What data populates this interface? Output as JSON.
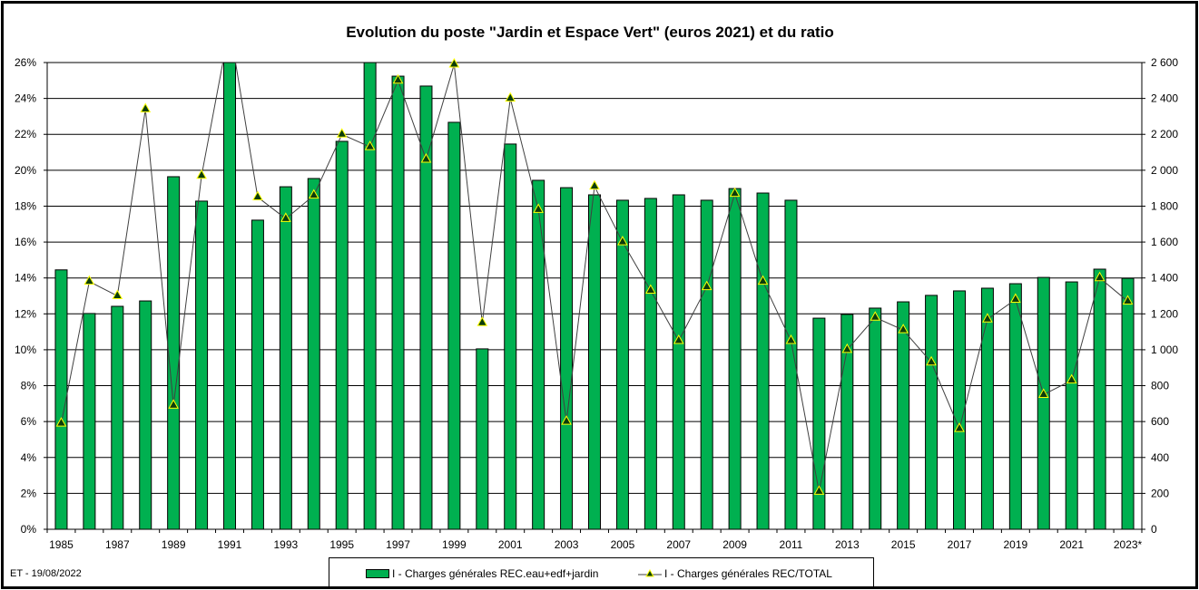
{
  "chart_data": {
    "type": "bar+line",
    "title": "Evolution du poste \"Jardin et Espace Vert\" (euros 2021) et du ratio",
    "categories": [
      "1985",
      "1986",
      "1987",
      "1988",
      "1989",
      "1990",
      "1991",
      "1992",
      "1993",
      "1994",
      "1995",
      "1996",
      "1997",
      "1998",
      "1999",
      "2000",
      "2001",
      "2002",
      "2003",
      "2004",
      "2005",
      "2006",
      "2007",
      "2008",
      "2009",
      "2010",
      "2011",
      "2012",
      "2013",
      "2014",
      "2015",
      "2016",
      "2017",
      "2018",
      "2019",
      "2020",
      "2021",
      "2022",
      "2023*"
    ],
    "x_tick_labels": [
      "1985",
      "1987",
      "1989",
      "1991",
      "1993",
      "1995",
      "1997",
      "1999",
      "2001",
      "2003",
      "2005",
      "2007",
      "2009",
      "2011",
      "2013",
      "2015",
      "2017",
      "2019",
      "2021",
      "2023*"
    ],
    "y_left": {
      "ylim": [
        0,
        26
      ],
      "ticks": [
        "0%",
        "2%",
        "4%",
        "6%",
        "8%",
        "10%",
        "12%",
        "14%",
        "16%",
        "18%",
        "20%",
        "22%",
        "24%",
        "26%"
      ]
    },
    "y_right": {
      "ylim": [
        0,
        2600
      ],
      "ticks": [
        "0",
        "200",
        "400",
        "600",
        "800",
        "1 000",
        "1 200",
        "1 400",
        "1 600",
        "1 800",
        "2 000",
        "2 200",
        "2 400",
        "2 600"
      ]
    },
    "grid": true,
    "legend_position": "bottom",
    "series": [
      {
        "name": "I - Charges générales REC.eau+edf+jardin",
        "type": "bar",
        "axis": "right",
        "color": "#00B050",
        "values": [
          1445,
          1202,
          1242,
          1272,
          1964,
          1828,
          2600,
          1722,
          1908,
          1954,
          2161,
          2600,
          2524,
          2469,
          2267,
          1005,
          2146,
          1944,
          1903,
          1863,
          1833,
          1843,
          1863,
          1833,
          1898,
          1873,
          1833,
          1176,
          1197,
          1232,
          1267,
          1303,
          1328,
          1343,
          1368,
          1403,
          1378,
          1449,
          1398
        ]
      },
      {
        "name": "I - Charges générales REC/TOTAL",
        "type": "line",
        "axis": "left",
        "color": "#404040",
        "marker": "triangle",
        "marker_fill": "#0B3D0B",
        "marker_edge": "#FFFF00",
        "values": [
          5.9,
          13.8,
          13.0,
          23.4,
          6.9,
          19.7,
          28.0,
          18.5,
          17.3,
          18.6,
          22.0,
          21.3,
          25.0,
          20.6,
          25.9,
          11.5,
          24.0,
          17.8,
          6.0,
          19.1,
          16.0,
          13.3,
          10.5,
          13.5,
          18.7,
          13.8,
          10.5,
          2.1,
          10.0,
          11.8,
          11.1,
          9.3,
          5.6,
          11.7,
          12.8,
          7.5,
          8.3,
          14.0,
          12.7
        ]
      }
    ]
  },
  "footer": "ET - 19/08/2022"
}
